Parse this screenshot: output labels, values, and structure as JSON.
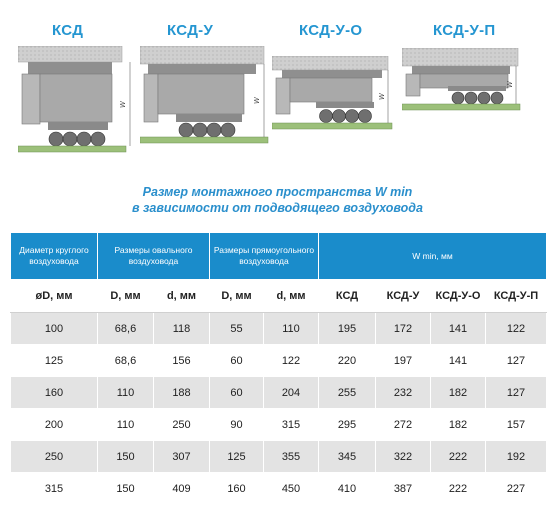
{
  "variants": [
    {
      "label": "КСД"
    },
    {
      "label": "КСД-У"
    },
    {
      "label": "КСД-У-О"
    },
    {
      "label": "КСД-У-П"
    }
  ],
  "dimension_letter": "W",
  "caption": {
    "line1": "Размер монтажного пространства W min",
    "line2": "в зависимости от подводящего воздуховода"
  },
  "table": {
    "group_headers": {
      "round": "Диаметр круглого воздуховода",
      "oval": "Размеры овального воздуховода",
      "rect": "Размеры прямоугольного воздуховода",
      "wmin": "W min, мм"
    },
    "sub_headers": [
      "øD, мм",
      "D, мм",
      "d, мм",
      "D, мм",
      "d, мм",
      "КСД",
      "КСД-У",
      "КСД-У-О",
      "КСД-У-П"
    ],
    "rows": [
      [
        "100",
        "68,6",
        "118",
        "55",
        "110",
        "195",
        "172",
        "141",
        "122"
      ],
      [
        "125",
        "68,6",
        "156",
        "60",
        "122",
        "220",
        "197",
        "141",
        "127"
      ],
      [
        "160",
        "110",
        "188",
        "60",
        "204",
        "255",
        "232",
        "182",
        "127"
      ],
      [
        "200",
        "110",
        "250",
        "90",
        "315",
        "295",
        "272",
        "182",
        "157"
      ],
      [
        "250",
        "150",
        "307",
        "125",
        "355",
        "345",
        "322",
        "222",
        "192"
      ],
      [
        "315",
        "150",
        "409",
        "160",
        "450",
        "410",
        "387",
        "222",
        "227"
      ]
    ]
  },
  "colors": {
    "accent": "#2596d1",
    "header_bg": "#1a8ccb",
    "row_shade": "#e3e3e3",
    "concrete": "#c9c9c9",
    "floor": "#9cc07a"
  }
}
